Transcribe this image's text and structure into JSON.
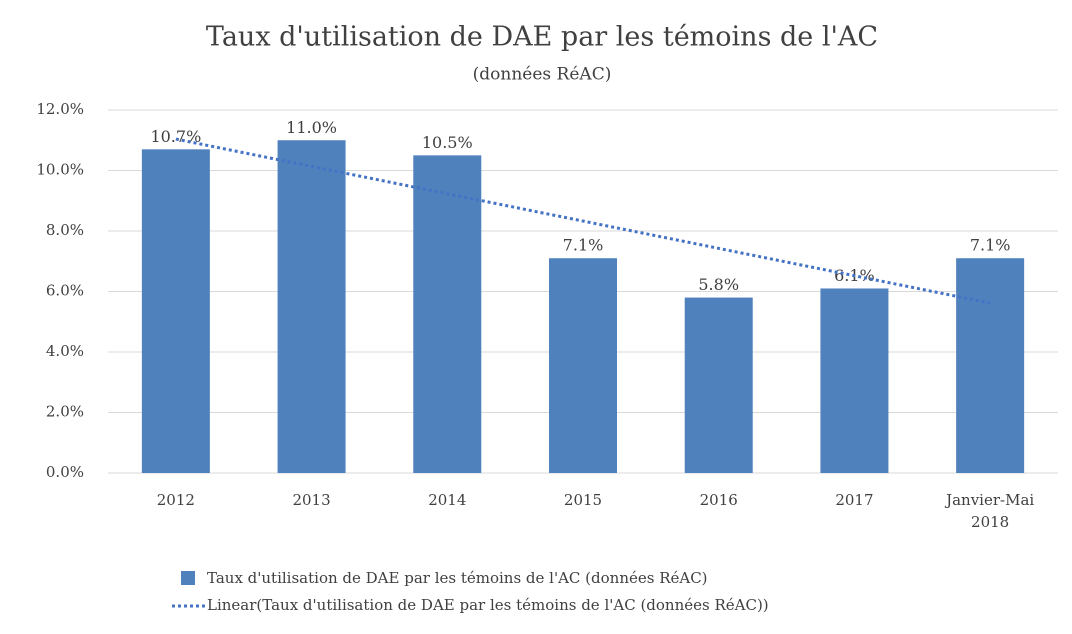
{
  "chart_data": {
    "type": "bar",
    "title": "Taux d'utilisation de DAE par les témoins de l'AC",
    "subtitle": "(données RéAC)",
    "categories": [
      "2012",
      "2013",
      "2014",
      "2015",
      "2016",
      "2017",
      "Janvier-Mai 2018"
    ],
    "series": [
      {
        "name": "Taux d'utilisation de DAE par les témoins de l'AC (données RéAC)",
        "color": "#4f81bd",
        "values": [
          10.7,
          11.0,
          10.5,
          7.1,
          5.8,
          6.1,
          7.1
        ],
        "value_labels": [
          "10.7%",
          "11.0%",
          "10.5%",
          "7.1%",
          "5.8%",
          "6.1%",
          "7.1%"
        ]
      }
    ],
    "trendline": {
      "name": "Linear(Taux d'utilisation de DAE par les témoins de l'AC (données RéAC))",
      "color": "#4472c4"
    },
    "ylim": [
      0,
      12
    ],
    "yticks": [
      {
        "value": 0,
        "label": "0.0%"
      },
      {
        "value": 2,
        "label": "2.0%"
      },
      {
        "value": 4,
        "label": "4.0%"
      },
      {
        "value": 6,
        "label": "6.0%"
      },
      {
        "value": 8,
        "label": "8.0%"
      },
      {
        "value": 10,
        "label": "10.0%"
      },
      {
        "value": 12,
        "label": "12.0%"
      }
    ],
    "grid": true
  }
}
